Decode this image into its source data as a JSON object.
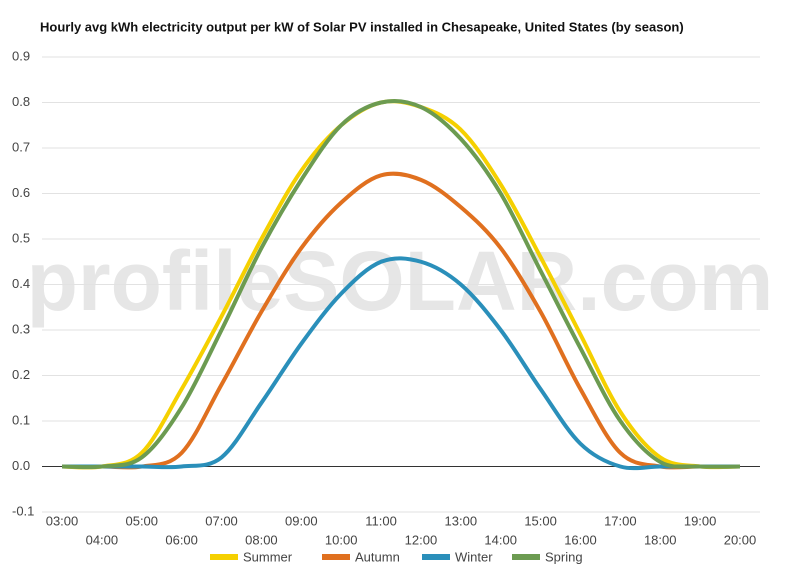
{
  "chart_data": {
    "type": "line",
    "title": "Hourly avg kWh electricity output per kW of Solar PV installed in Chesapeake, United States (by season)",
    "watermark": "profileSOLAR.com",
    "categories": [
      "03:00",
      "04:00",
      "05:00",
      "06:00",
      "07:00",
      "08:00",
      "09:00",
      "10:00",
      "11:00",
      "12:00",
      "13:00",
      "14:00",
      "15:00",
      "16:00",
      "17:00",
      "18:00",
      "19:00",
      "20:00"
    ],
    "series": [
      {
        "name": "Summer",
        "color": "#f5d000",
        "values": [
          0,
          0,
          0.03,
          0.17,
          0.33,
          0.5,
          0.65,
          0.75,
          0.8,
          0.79,
          0.74,
          0.62,
          0.46,
          0.29,
          0.12,
          0.02,
          0,
          0
        ]
      },
      {
        "name": "Autumn",
        "color": "#e0701f",
        "values": [
          0,
          0,
          0,
          0.03,
          0.18,
          0.34,
          0.48,
          0.58,
          0.64,
          0.63,
          0.57,
          0.48,
          0.34,
          0.17,
          0.03,
          0,
          0,
          0
        ]
      },
      {
        "name": "Winter",
        "color": "#2a8fba",
        "values": [
          0,
          0,
          0,
          0,
          0.02,
          0.14,
          0.27,
          0.38,
          0.45,
          0.45,
          0.4,
          0.3,
          0.17,
          0.05,
          0,
          0,
          0,
          0
        ]
      },
      {
        "name": "Spring",
        "color": "#6c9b51",
        "values": [
          0,
          0,
          0.02,
          0.13,
          0.3,
          0.48,
          0.63,
          0.75,
          0.8,
          0.79,
          0.72,
          0.6,
          0.43,
          0.26,
          0.1,
          0.01,
          0,
          0
        ]
      }
    ],
    "ylim": [
      -0.1,
      0.9
    ],
    "yticks": [
      -0.1,
      {
        "value": 0,
        "label": "0.0"
      },
      0.1,
      0.2,
      0.3,
      0.4,
      0.5,
      0.6,
      0.7,
      0.8,
      0.9
    ],
    "grid": true,
    "legend": "bottom"
  }
}
